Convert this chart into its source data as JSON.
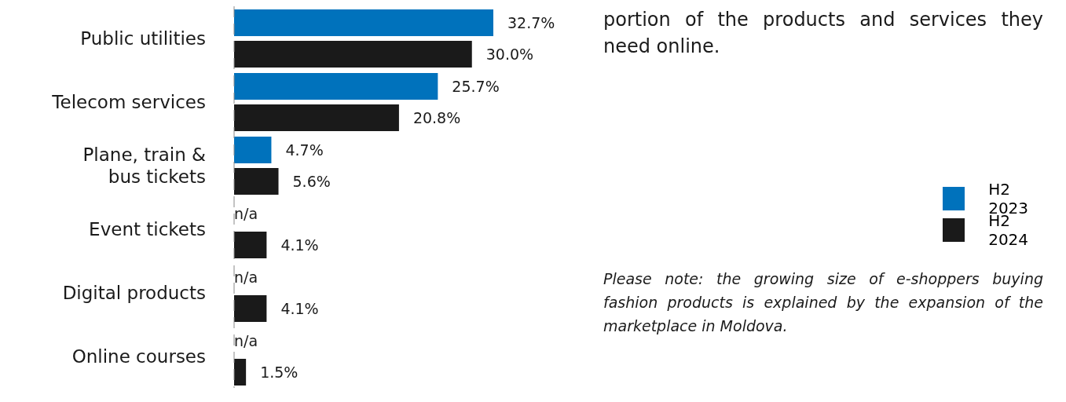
{
  "chart_data": {
    "type": "bar",
    "orientation": "horizontal",
    "categories": [
      "Public utilities",
      "Telecom services",
      "Plane, train & bus tickets",
      "Event tickets",
      "Digital products",
      "Online courses"
    ],
    "series": [
      {
        "name": "H2 2023",
        "color": "#0072bc",
        "values": [
          32.7,
          25.7,
          4.7,
          null,
          null,
          null
        ],
        "value_labels": [
          "32.7%",
          "25.7%",
          "4.7%",
          "n/a",
          "n/a",
          "n/a"
        ]
      },
      {
        "name": "H2 2024",
        "color": "#1a1a1a",
        "values": [
          30.0,
          20.8,
          5.6,
          4.1,
          4.1,
          1.5
        ],
        "value_labels": [
          "30.0%",
          "20.8%",
          "5.6%",
          "4.1%",
          "4.1%",
          "1.5%"
        ]
      }
    ],
    "legend": "right",
    "grid": false,
    "annotations": [
      "portion of the products and services they need online.",
      "Please note: the growing size of e-shoppers buying fashion products is explained by the expansion of the marketplace in Moldova."
    ]
  }
}
